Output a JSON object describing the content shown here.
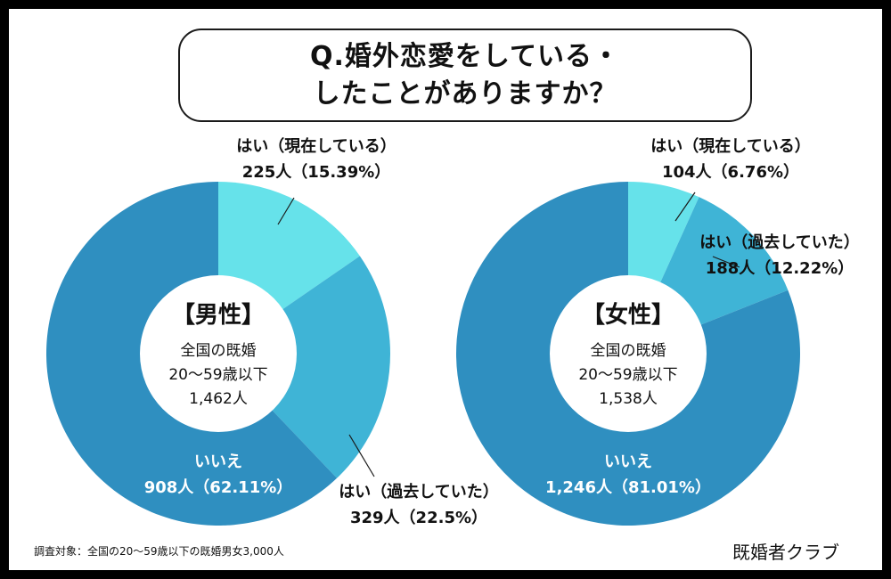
{
  "title": {
    "line1": "Q.婚外恋愛をしている・",
    "line2": "したことがありますか？"
  },
  "footnote": "調査対象：全国の20〜59歳以下の既婚男女3,000人",
  "brand": "既婚者クラブ",
  "colors": {
    "dark": "#2f8fc0",
    "mid": "#3fb4d6",
    "light": "#66e2ea"
  },
  "chart_data": [
    {
      "type": "pie",
      "center_title": "【男性】",
      "center_lines": [
        "全国の既婚",
        "20〜59歳以下",
        "1,462人"
      ],
      "slices": [
        {
          "label": "はい（現在している）",
          "count_label": "225人（15.39%）",
          "value": 15.39
        },
        {
          "label": "はい（過去していた）",
          "count_label": "329人（22.5%）",
          "value": 22.5
        },
        {
          "label": "いいえ",
          "count_label": "908人（62.11%）",
          "value": 62.11
        }
      ]
    },
    {
      "type": "pie",
      "center_title": "【女性】",
      "center_lines": [
        "全国の既婚",
        "20〜59歳以下",
        "1,538人"
      ],
      "slices": [
        {
          "label": "はい（現在している）",
          "count_label": "104人（6.76%）",
          "value": 6.76
        },
        {
          "label": "はい（過去していた）",
          "count_label": "188人（12.22%）",
          "value": 12.22
        },
        {
          "label": "いいえ",
          "count_label": "1,246人（81.01%）",
          "value": 81.01
        }
      ]
    }
  ]
}
